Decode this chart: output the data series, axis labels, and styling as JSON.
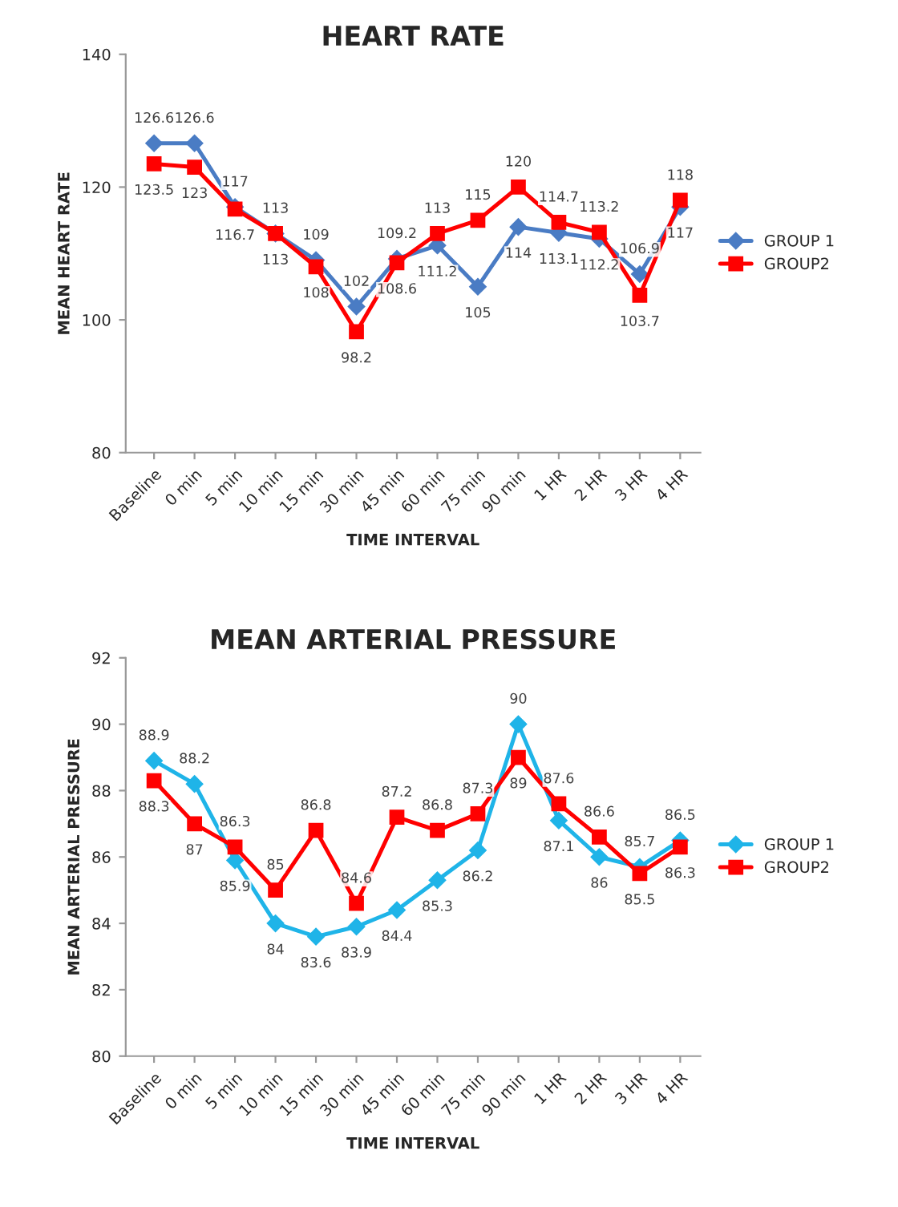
{
  "chart_data": [
    {
      "type": "line",
      "title": "HEART RATE",
      "xlabel": "TIME INTERVAL",
      "ylabel": "MEAN HEART RATE",
      "categories": [
        "Baseline",
        "0 min",
        "5 min",
        "10 min",
        "15 min",
        "30 min",
        "45 min",
        "60 min",
        "75 min",
        "90 min",
        "1 HR",
        "2 HR",
        "3 HR",
        "4 HR"
      ],
      "series": [
        {
          "name": "GROUP 1",
          "color": "#4a7cc4",
          "marker": "diamond",
          "values": [
            126.6,
            126.6,
            117,
            113,
            109,
            102,
            109.2,
            111.2,
            105,
            114,
            113.1,
            112.2,
            106.9,
            117
          ]
        },
        {
          "name": "GROUP2",
          "color": "#ff0000",
          "marker": "square",
          "values": [
            123.5,
            123,
            116.7,
            113,
            108,
            98.2,
            108.6,
            113,
            115,
            120,
            114.7,
            113.2,
            103.7,
            118
          ]
        }
      ],
      "ylim": [
        80,
        140
      ],
      "yticks": [
        80,
        100,
        120,
        140
      ],
      "data_labels": true,
      "legend": "right",
      "grid": false
    },
    {
      "type": "line",
      "title": "MEAN ARTERIAL PRESSURE",
      "xlabel": "TIME INTERVAL",
      "ylabel": "MEAN ARTERIAL PRESSURE",
      "categories": [
        "Baseline",
        "0 min",
        "5 min",
        "10 min",
        "15 min",
        "30 min",
        "45 min",
        "60 min",
        "75 min",
        "90 min",
        "1 HR",
        "2 HR",
        "3 HR",
        "4 HR"
      ],
      "series": [
        {
          "name": "GROUP 1",
          "color": "#1fb4e8",
          "marker": "diamond",
          "values": [
            88.9,
            88.2,
            85.9,
            84,
            83.6,
            83.9,
            84.4,
            85.3,
            86.2,
            90,
            87.1,
            86,
            85.7,
            86.5
          ]
        },
        {
          "name": "GROUP2",
          "color": "#ff0000",
          "marker": "square",
          "values": [
            88.3,
            87,
            86.3,
            85,
            86.8,
            84.6,
            87.2,
            86.8,
            87.3,
            89,
            87.6,
            86.6,
            85.5,
            86.3
          ]
        }
      ],
      "ylim": [
        80,
        92
      ],
      "yticks": [
        80,
        82,
        84,
        86,
        88,
        90,
        92
      ],
      "data_labels": true,
      "legend": "right",
      "grid": false
    }
  ]
}
